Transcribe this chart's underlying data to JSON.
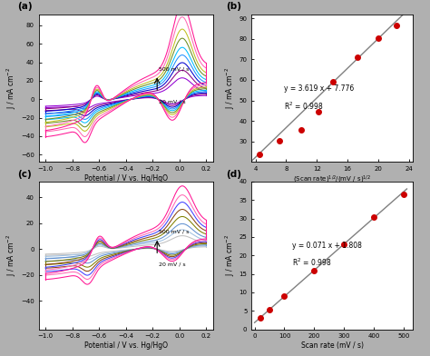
{
  "fig_bg": "#b0b0b0",
  "panel_bg": "white",
  "text_color": "black",
  "xlabel_cv": "Potential / V vs. Hg/HgO",
  "ylabel_cv": "J / mA cm$^{-2}$",
  "xlabel_b": "(Scan rate)$^{1/2}$/(mV / s)$^{1/2}$",
  "ylabel_b": "J / mA cm$^{-2}$",
  "xlabel_d": "Scan rate (mV / s)",
  "ylabel_d": "J / mA cm$^{-2}$",
  "eq_b": "y = 3.619 x + 7.776",
  "r2_b": "R$^2$ = 0.998",
  "eq_d": "y = 0.071 x + 1.808",
  "r2_d": "R$^2$ = 0.998",
  "b_x": [
    4.47,
    7.07,
    10.0,
    12.25,
    14.14,
    17.32,
    20.0,
    22.36
  ],
  "b_y": [
    23.5,
    30.5,
    35.5,
    44.5,
    59.0,
    71.0,
    80.5,
    86.5
  ],
  "d_x": [
    20,
    50,
    100,
    200,
    300,
    400,
    500
  ],
  "d_y": [
    3.2,
    5.4,
    8.9,
    16.0,
    23.0,
    30.5,
    36.5
  ],
  "b_slope": 3.619,
  "b_intercept": 7.776,
  "d_slope": 0.071,
  "d_intercept": 1.808,
  "colors_a": [
    "#9400D3",
    "#8B0080",
    "#0000CD",
    "#1E90FF",
    "#00BFFF",
    "#6B8E23",
    "#C0C020",
    "#FF69B4",
    "#FF1493"
  ],
  "scales_a": [
    0.28,
    0.38,
    0.48,
    0.58,
    0.68,
    0.8,
    0.92,
    1.08,
    1.25
  ],
  "colors_c": [
    "#c0c0c0",
    "#a0c0e0",
    "#6090d0",
    "#808000",
    "#8B4513",
    "#4040FF",
    "#FF69B4",
    "#FF1493"
  ],
  "scales_c": [
    0.22,
    0.32,
    0.42,
    0.54,
    0.66,
    0.78,
    0.9,
    1.05
  ]
}
